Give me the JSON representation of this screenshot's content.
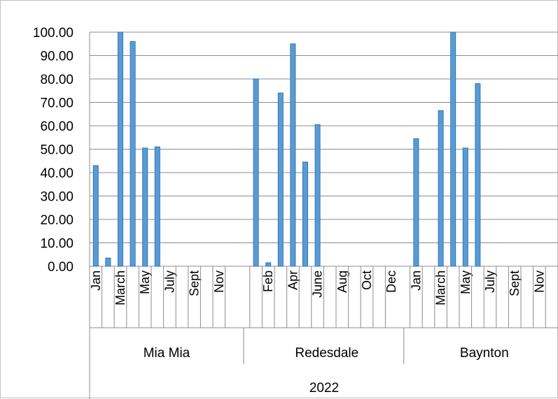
{
  "chart_data": {
    "type": "bar",
    "title": "",
    "xlabel": "",
    "ylabel": "",
    "ylim": [
      0,
      100
    ],
    "y_ticks": [
      "0.00",
      "10.00",
      "20.00",
      "30.00",
      "40.00",
      "50.00",
      "60.00",
      "70.00",
      "80.00",
      "90.00",
      "100.00"
    ],
    "grid": true,
    "bar_color": "#5b9bd5",
    "year_label": "2022",
    "groups": [
      {
        "name": "Mia Mia",
        "categories": [
          "Jan",
          "Feb",
          "March",
          "Apr",
          "May",
          "June",
          "July",
          "Aug",
          "Sept",
          "Oct",
          "Nov",
          "Dec"
        ],
        "tick_labels": [
          "Jan",
          "",
          "March",
          "",
          "May",
          "",
          "July",
          "",
          "Sept",
          "",
          "Nov",
          ""
        ],
        "values": [
          43,
          3.5,
          100,
          96,
          50.5,
          51,
          0,
          0,
          0,
          0,
          0,
          0
        ]
      },
      {
        "name": "Redesdale",
        "categories": [
          "Jan",
          "Feb",
          "March",
          "Apr",
          "May",
          "June",
          "July",
          "Aug",
          "Sept",
          "Oct",
          "Nov",
          "Dec"
        ],
        "tick_labels": [
          "",
          "Feb",
          "",
          "Apr",
          "",
          "June",
          "",
          "Aug",
          "",
          "Oct",
          "",
          "Dec"
        ],
        "values": [
          80,
          1.5,
          74,
          95,
          44.5,
          60.5,
          0,
          0,
          0,
          0,
          0,
          0
        ]
      },
      {
        "name": "Baynton",
        "categories": [
          "Jan",
          "Feb",
          "March",
          "Apr",
          "May",
          "June",
          "July",
          "Aug",
          "Sept",
          "Oct",
          "Nov",
          "Dec"
        ],
        "tick_labels": [
          "Jan",
          "",
          "March",
          "",
          "May",
          "",
          "July",
          "",
          "Sept",
          "",
          "Nov",
          ""
        ],
        "values": [
          54.5,
          0,
          66.5,
          100,
          50.5,
          78,
          0,
          0,
          0,
          0,
          0,
          0
        ]
      }
    ]
  }
}
